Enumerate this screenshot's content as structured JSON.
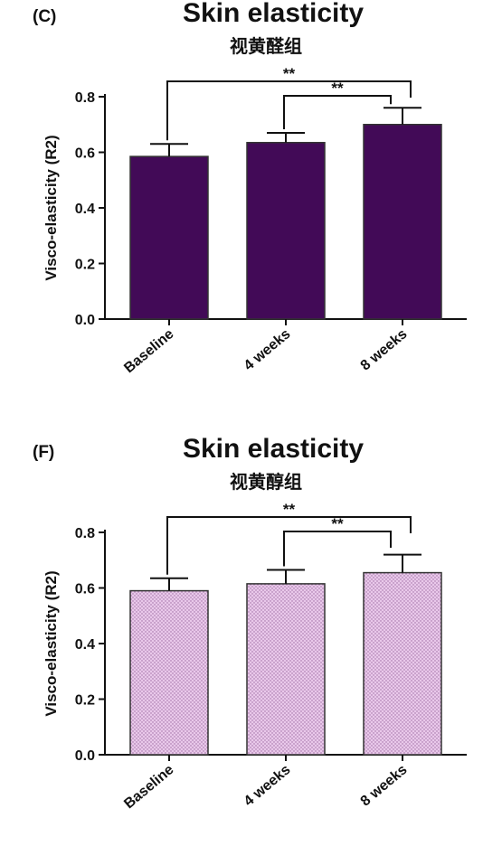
{
  "chart_data": [
    {
      "type": "bar",
      "panel_label": "(C)",
      "title": "Skin elasticity",
      "subtitle": "视黄醛组",
      "ylabel": "Visco-elasticity (R2)",
      "xlabel": "",
      "categories": [
        "Baseline",
        "4 weeks",
        "8 weeks"
      ],
      "values": [
        0.585,
        0.635,
        0.7
      ],
      "errors": [
        0.045,
        0.035,
        0.06
      ],
      "ylim": [
        0,
        0.8
      ],
      "yticks": [
        "0.0",
        "0.2",
        "0.4",
        "0.6",
        "0.8"
      ],
      "bar_color": "#420a57",
      "bar_pattern": "solid",
      "significance": [
        {
          "from": 0,
          "to": 2,
          "label": "**"
        },
        {
          "from": 1,
          "to": 2,
          "label": "**"
        }
      ],
      "grid": false
    },
    {
      "type": "bar",
      "panel_label": "(F)",
      "title": "Skin elasticity",
      "subtitle": "视黄醇组",
      "ylabel": "Visco-elasticity (R2)",
      "xlabel": "",
      "categories": [
        "Baseline",
        "4 weeks",
        "8 weeks"
      ],
      "values": [
        0.59,
        0.615,
        0.655
      ],
      "errors": [
        0.045,
        0.05,
        0.065
      ],
      "ylim": [
        0,
        0.8
      ],
      "yticks": [
        "0.0",
        "0.2",
        "0.4",
        "0.6",
        "0.8"
      ],
      "bar_color": "#e9c8ea",
      "bar_pattern": "dotted",
      "significance": [
        {
          "from": 0,
          "to": 2,
          "label": "**"
        },
        {
          "from": 1,
          "to": 2,
          "label": "**"
        }
      ],
      "grid": false
    }
  ]
}
